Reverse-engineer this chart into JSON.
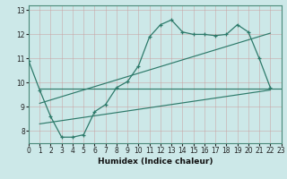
{
  "xlabel": "Humidex (Indice chaleur)",
  "xlim": [
    0,
    23
  ],
  "ylim": [
    7.5,
    13.2
  ],
  "yticks": [
    8,
    9,
    10,
    11,
    12,
    13
  ],
  "xticks": [
    0,
    1,
    2,
    3,
    4,
    5,
    6,
    7,
    8,
    9,
    10,
    11,
    12,
    13,
    14,
    15,
    16,
    17,
    18,
    19,
    20,
    21,
    22,
    23
  ],
  "bg_color": "#cce8e8",
  "grid_color": "#b0d4d4",
  "line_color": "#2d7a6a",
  "line1_x": [
    0,
    1,
    2,
    3,
    4,
    5,
    6,
    7,
    8,
    9,
    10,
    11,
    12,
    13,
    14,
    15,
    16,
    17,
    18,
    19,
    20,
    21,
    22
  ],
  "line1_y": [
    10.9,
    9.7,
    8.6,
    7.75,
    7.75,
    7.85,
    8.8,
    9.1,
    9.8,
    10.05,
    10.7,
    11.9,
    12.4,
    12.6,
    12.1,
    12.0,
    12.0,
    11.95,
    12.0,
    12.4,
    12.1,
    11.0,
    9.8
  ],
  "line2_x": [
    1,
    23
  ],
  "line2_y": [
    9.75,
    9.75
  ],
  "line3_x": [
    1,
    22
  ],
  "line3_y": [
    9.15,
    12.05
  ],
  "line4_x": [
    1,
    22
  ],
  "line4_y": [
    8.3,
    9.7
  ],
  "label_fontsize": 6.5,
  "tick_fontsize": 5.5
}
